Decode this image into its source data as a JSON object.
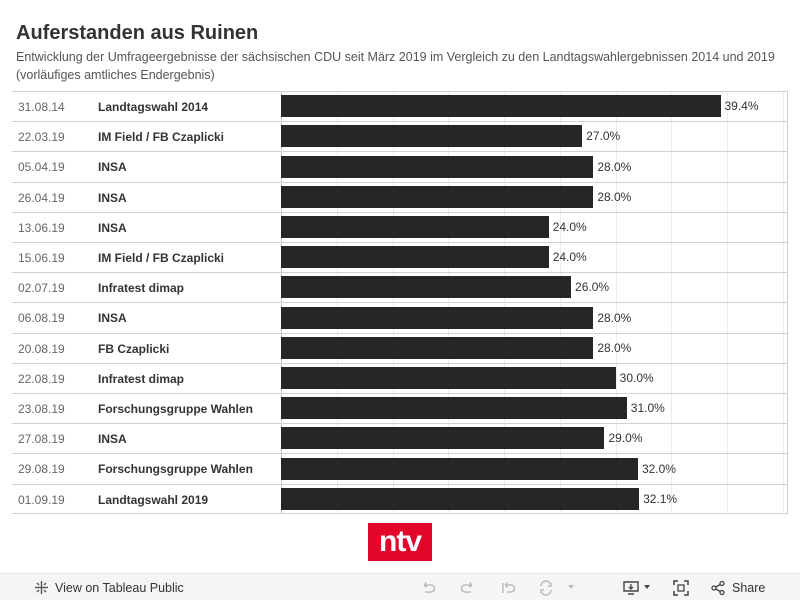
{
  "title": "Auferstanden aus Ruinen",
  "subtitle": "Entwicklung der Umfrageergebnisse der sächsischen CDU seit März 2019 im Vergleich zu den Landtagswahlergebnissen 2014 und 2019 (vorläufiges amtliches Endergebnis)",
  "chart_data": {
    "type": "bar",
    "orientation": "horizontal",
    "categories": [
      {
        "date": "31.08.14",
        "institute": "Landtagswahl 2014"
      },
      {
        "date": "22.03.19",
        "institute": "IM Field / FB Czaplicki"
      },
      {
        "date": "05.04.19",
        "institute": "INSA"
      },
      {
        "date": "26.04.19",
        "institute": "INSA"
      },
      {
        "date": "13.06.19",
        "institute": "INSA"
      },
      {
        "date": "15.06.19",
        "institute": "IM Field / FB Czaplicki"
      },
      {
        "date": "02.07.19",
        "institute": "Infratest dimap"
      },
      {
        "date": "06.08.19",
        "institute": "INSA"
      },
      {
        "date": "20.08.19",
        "institute": "FB Czaplicki"
      },
      {
        "date": "22.08.19",
        "institute": "Infratest dimap"
      },
      {
        "date": "23.08.19",
        "institute": "Forschungsgruppe Wahlen"
      },
      {
        "date": "27.08.19",
        "institute": "INSA"
      },
      {
        "date": "29.08.19",
        "institute": "Forschungsgruppe Wahlen"
      },
      {
        "date": "01.09.19",
        "institute": "Landtagswahl 2019"
      }
    ],
    "values": [
      39.4,
      27.0,
      28.0,
      28.0,
      24.0,
      24.0,
      26.0,
      28.0,
      28.0,
      30.0,
      31.0,
      29.0,
      32.0,
      32.1
    ],
    "value_labels": [
      "39.4%",
      "27.0%",
      "28.0%",
      "28.0%",
      "24.0%",
      "24.0%",
      "26.0%",
      "28.0%",
      "28.0%",
      "30.0%",
      "31.0%",
      "29.0%",
      "32.0%",
      "32.1%"
    ],
    "xlim": [
      0,
      45
    ],
    "bar_color": "#262626",
    "grid": true
  },
  "logo_text": "ntv",
  "logo_color": "#e3062b",
  "footer": {
    "view_label": "View on Tableau Public",
    "share_label": "Share"
  }
}
